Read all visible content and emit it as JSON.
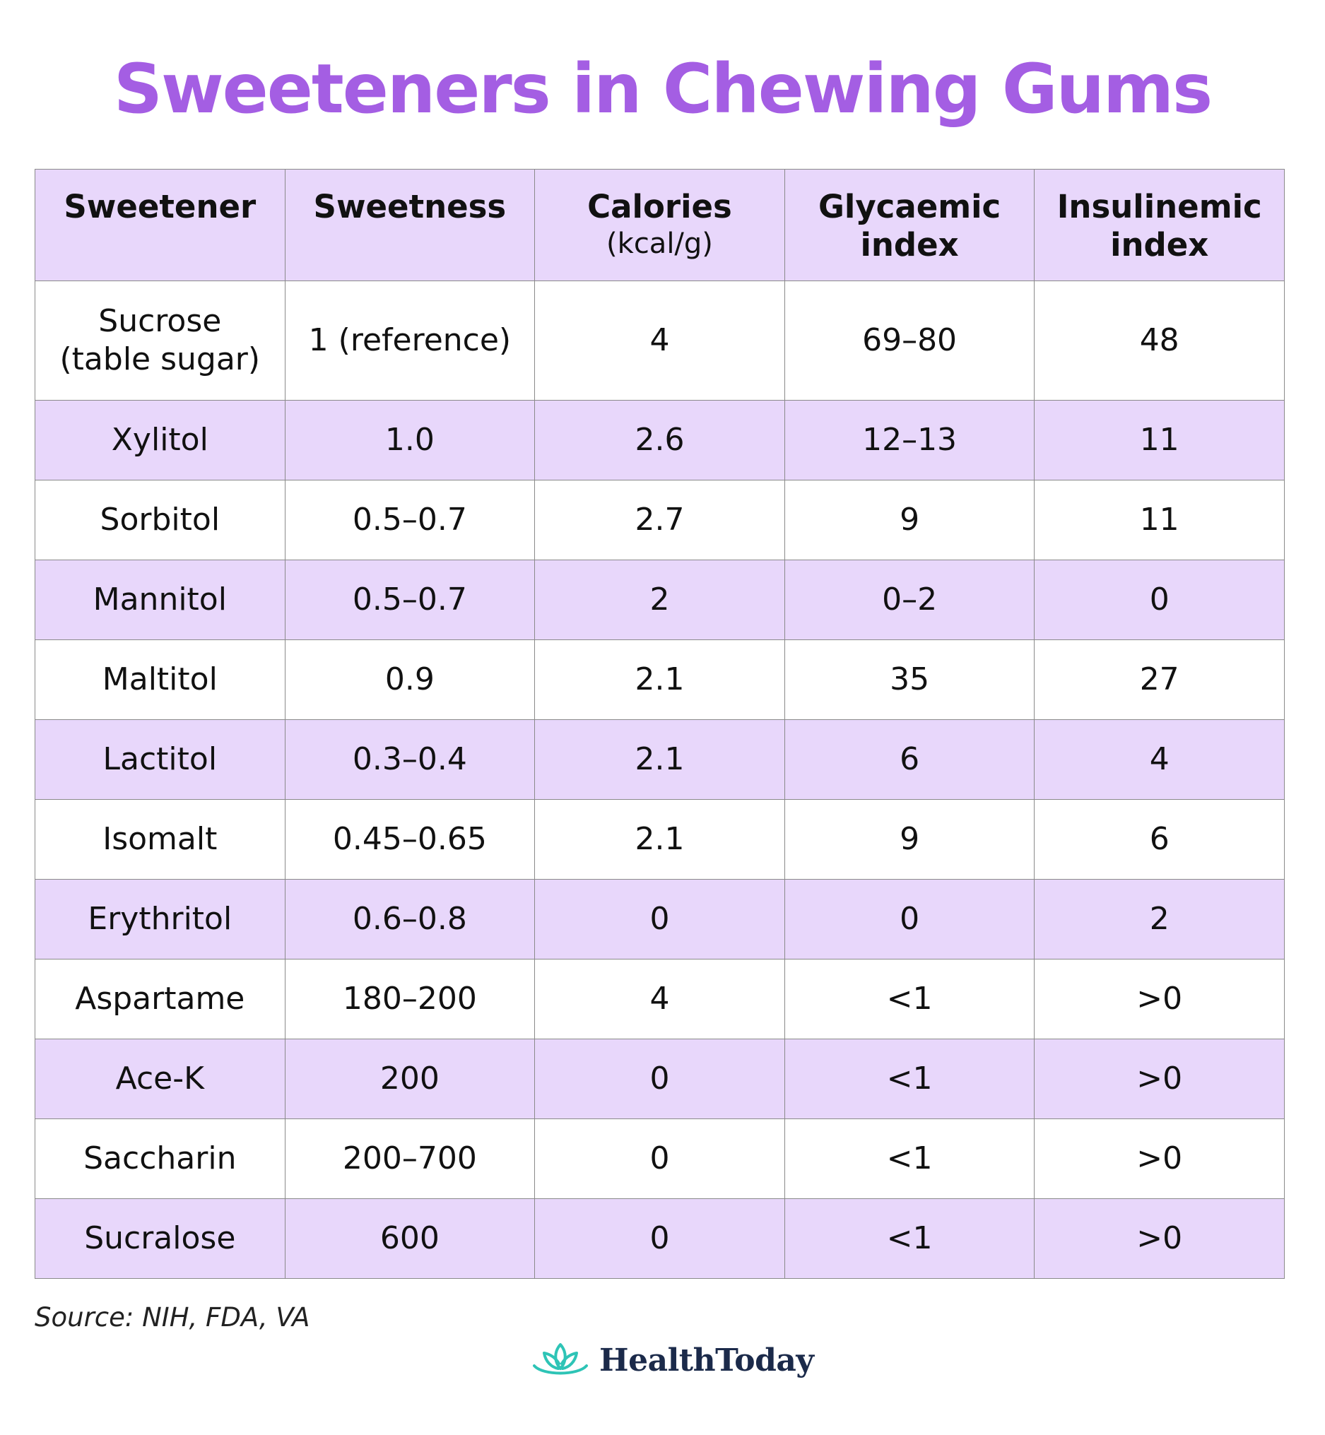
{
  "title": "Sweeteners in Chewing Gums",
  "table": {
    "headers": [
      {
        "main": "Sweetener",
        "sub": ""
      },
      {
        "main": "Sweetness",
        "sub": ""
      },
      {
        "main": "Calories",
        "sub": "(kcal/g)"
      },
      {
        "main": "Glycaemic index",
        "sub": ""
      },
      {
        "main": "Insulinemic index",
        "sub": ""
      }
    ],
    "rows": [
      [
        "Sucrose (table sugar)",
        "1 (reference)",
        "4",
        "69–80",
        "48"
      ],
      [
        "Xylitol",
        "1.0",
        "2.6",
        "12–13",
        "11"
      ],
      [
        "Sorbitol",
        "0.5–0.7",
        "2.7",
        "9",
        "11"
      ],
      [
        "Mannitol",
        "0.5–0.7",
        "2",
        "0–2",
        "0"
      ],
      [
        "Maltitol",
        "0.9",
        "2.1",
        "35",
        "27"
      ],
      [
        "Lactitol",
        "0.3–0.4",
        "2.1",
        "6",
        "4"
      ],
      [
        "Isomalt",
        "0.45–0.65",
        "2.1",
        "9",
        "6"
      ],
      [
        "Erythritol",
        "0.6–0.8",
        "0",
        "0",
        "2"
      ],
      [
        "Aspartame",
        "180–200",
        "4",
        "<1",
        ">0"
      ],
      [
        "Ace-K",
        "200",
        "0",
        "<1",
        ">0"
      ],
      [
        "Saccharin",
        "200–700",
        "0",
        "<1",
        ">0"
      ],
      [
        "Sucralose",
        "600",
        "0",
        "<1",
        ">0"
      ]
    ]
  },
  "source": "Source: NIH, FDA, VA",
  "logo": {
    "text": "HealthToday",
    "icon": "lotus-icon",
    "icon_color": "#2ec4b6"
  },
  "colors": {
    "title": "#a45ee3",
    "header_bg": "#e8d7fb",
    "row_shade": "#e8d7fb",
    "border": "#8a8a8a"
  }
}
